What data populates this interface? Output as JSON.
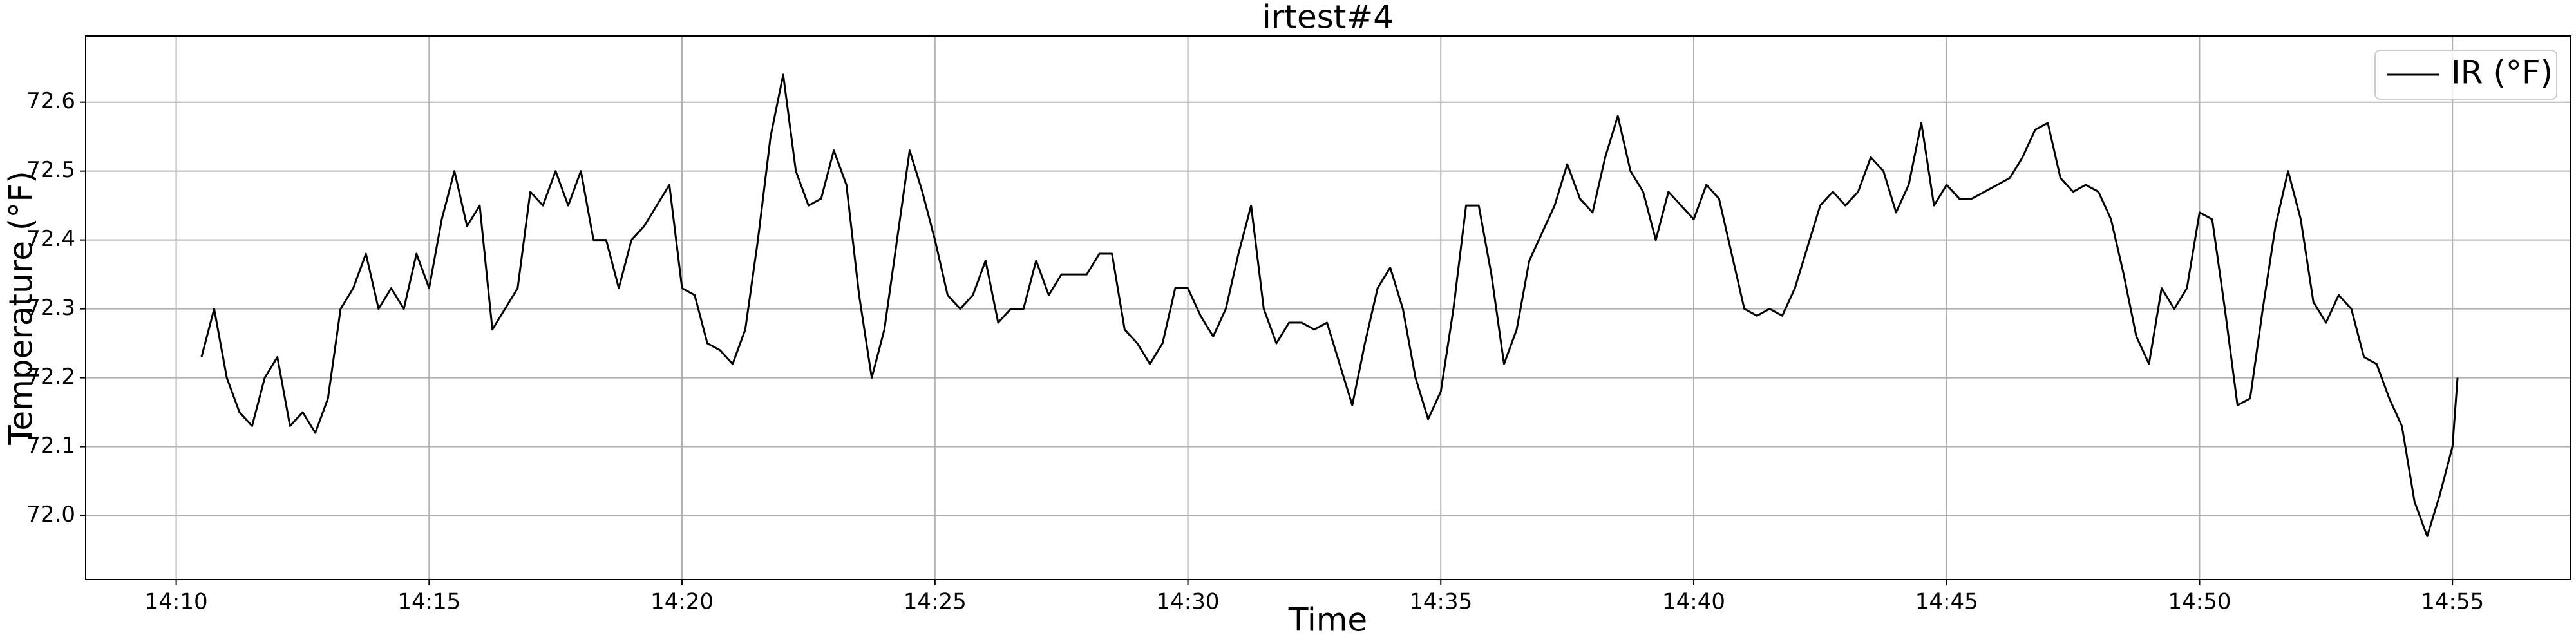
{
  "chart_data": {
    "type": "line",
    "title": "irtest#4",
    "x_label": "Time",
    "y_label": "Temperature (°F)",
    "x": [
      850.5,
      850.75,
      851,
      851.25,
      851.5,
      851.75,
      852,
      852.25,
      852.5,
      852.75,
      853,
      853.25,
      853.5,
      853.75,
      854,
      854.25,
      854.5,
      854.75,
      855,
      855.25,
      855.5,
      855.75,
      856,
      856.25,
      856.5,
      856.75,
      857,
      857.25,
      857.5,
      857.75,
      858,
      858.25,
      858.5,
      858.75,
      859,
      859.25,
      859.5,
      859.75,
      860,
      860.25,
      860.5,
      860.75,
      861,
      861.25,
      861.5,
      861.75,
      862,
      862.25,
      862.5,
      862.75,
      863,
      863.25,
      863.5,
      863.75,
      864,
      864.25,
      864.5,
      864.75,
      865,
      865.25,
      865.5,
      865.75,
      866,
      866.25,
      866.5,
      866.75,
      867,
      867.25,
      867.5,
      867.75,
      868,
      868.25,
      868.5,
      868.75,
      869,
      869.25,
      869.5,
      869.75,
      870,
      870.25,
      870.5,
      870.75,
      871,
      871.25,
      871.5,
      871.75,
      872,
      872.25,
      872.5,
      872.75,
      873,
      873.25,
      873.5,
      873.75,
      874,
      874.25,
      874.5,
      874.75,
      875,
      875.25,
      875.5,
      875.75,
      876,
      876.25,
      876.5,
      876.75,
      877,
      877.25,
      877.5,
      877.75,
      878,
      878.25,
      878.5,
      878.75,
      879,
      879.25,
      879.5,
      879.75,
      880,
      880.25,
      880.5,
      880.75,
      881,
      881.25,
      881.5,
      881.75,
      882,
      882.25,
      882.5,
      882.75,
      883,
      883.25,
      883.5,
      883.75,
      884,
      884.25,
      884.5,
      884.75,
      885,
      885.25,
      885.5,
      885.75,
      886,
      886.25,
      886.5,
      886.75,
      887,
      887.25,
      887.5,
      887.75,
      888,
      888.25,
      888.5,
      888.75,
      889,
      889.25,
      889.5,
      889.75,
      890,
      890.25,
      890.5,
      890.75,
      891,
      891.25,
      891.5,
      891.75,
      892,
      892.25,
      892.5,
      892.75,
      893,
      893.25,
      893.5,
      893.75,
      894,
      894.25,
      894.5,
      894.75,
      895,
      895.1
    ],
    "series": [
      {
        "name": "IR (°F)",
        "color": "#000000",
        "values": [
          72.23,
          72.3,
          72.2,
          72.15,
          72.13,
          72.2,
          72.23,
          72.13,
          72.15,
          72.12,
          72.17,
          72.3,
          72.33,
          72.38,
          72.3,
          72.33,
          72.3,
          72.38,
          72.33,
          72.43,
          72.5,
          72.42,
          72.45,
          72.27,
          72.3,
          72.33,
          72.47,
          72.45,
          72.5,
          72.45,
          72.5,
          72.4,
          72.4,
          72.33,
          72.4,
          72.42,
          72.45,
          72.48,
          72.33,
          72.32,
          72.25,
          72.24,
          72.22,
          72.27,
          72.4,
          72.55,
          72.64,
          72.5,
          72.45,
          72.46,
          72.53,
          72.48,
          72.32,
          72.2,
          72.27,
          72.4,
          72.53,
          72.47,
          72.4,
          72.32,
          72.3,
          72.32,
          72.37,
          72.28,
          72.3,
          72.3,
          72.37,
          72.32,
          72.35,
          72.35,
          72.35,
          72.38,
          72.38,
          72.27,
          72.25,
          72.22,
          72.25,
          72.33,
          72.33,
          72.29,
          72.26,
          72.3,
          72.38,
          72.45,
          72.3,
          72.25,
          72.28,
          72.28,
          72.27,
          72.28,
          72.22,
          72.16,
          72.25,
          72.33,
          72.36,
          72.3,
          72.2,
          72.14,
          72.18,
          72.3,
          72.45,
          72.45,
          72.35,
          72.22,
          72.27,
          72.37,
          72.41,
          72.45,
          72.51,
          72.46,
          72.44,
          72.52,
          72.58,
          72.5,
          72.47,
          72.4,
          72.47,
          72.45,
          72.43,
          72.48,
          72.46,
          72.38,
          72.3,
          72.29,
          72.3,
          72.29,
          72.33,
          72.39,
          72.45,
          72.47,
          72.45,
          72.47,
          72.52,
          72.5,
          72.44,
          72.48,
          72.57,
          72.45,
          72.48,
          72.46,
          72.46,
          72.47,
          72.48,
          72.49,
          72.52,
          72.56,
          72.57,
          72.49,
          72.47,
          72.48,
          72.47,
          72.43,
          72.35,
          72.26,
          72.22,
          72.33,
          72.3,
          72.33,
          72.44,
          72.43,
          72.3,
          72.16,
          72.17,
          72.3,
          72.42,
          72.5,
          72.43,
          72.31,
          72.28,
          72.32,
          72.3,
          72.23,
          72.22,
          72.17,
          72.13,
          72.02,
          71.97,
          72.03,
          72.1,
          72.2
        ]
      }
    ],
    "xlim": [
      848.21,
      897.34
    ],
    "xticks": [
      {
        "value": 850,
        "label": "14:10"
      },
      {
        "value": 855,
        "label": "14:15"
      },
      {
        "value": 860,
        "label": "14:20"
      },
      {
        "value": 865,
        "label": "14:25"
      },
      {
        "value": 870,
        "label": "14:30"
      },
      {
        "value": 875,
        "label": "14:35"
      },
      {
        "value": 880,
        "label": "14:40"
      },
      {
        "value": 885,
        "label": "14:45"
      },
      {
        "value": 890,
        "label": "14:50"
      },
      {
        "value": 895,
        "label": "14:55"
      }
    ],
    "ylim": [
      71.907,
      72.696
    ],
    "yticks": [
      {
        "value": 72,
        "label": "72.0"
      },
      72.1,
      72.2,
      72.3,
      72.4,
      72.5,
      72.6
    ],
    "grid": true,
    "legend": "upper right"
  }
}
